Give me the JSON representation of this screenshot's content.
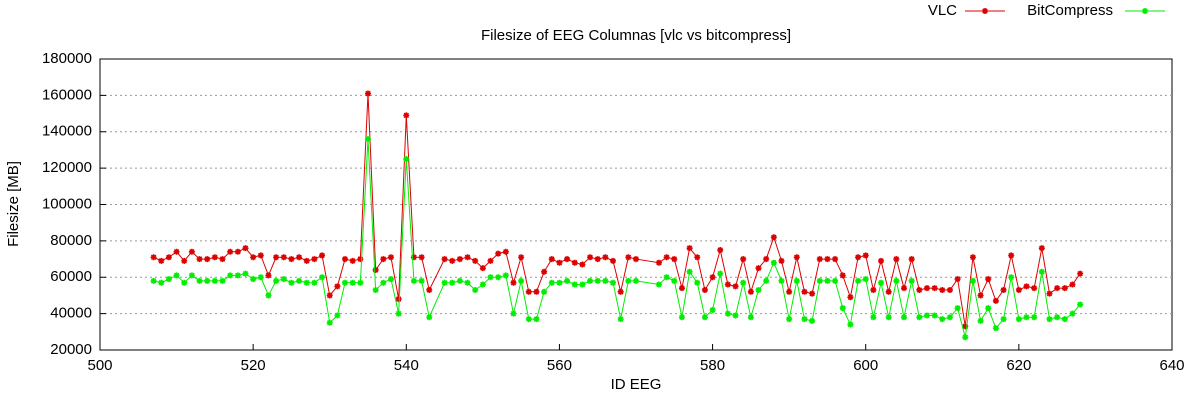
{
  "chart_data": {
    "type": "line",
    "title": "Filesize of EEG Columnas [vlc vs bitcompress]",
    "x_label": "ID EEG",
    "y_label": "Filesize [MB]",
    "x": [
      507,
      508,
      509,
      510,
      511,
      512,
      513,
      514,
      515,
      516,
      517,
      518,
      519,
      520,
      521,
      522,
      523,
      524,
      525,
      526,
      527,
      528,
      529,
      530,
      531,
      532,
      533,
      534,
      535,
      536,
      537,
      538,
      539,
      540,
      541,
      542,
      543,
      545,
      546,
      547,
      548,
      549,
      550,
      551,
      552,
      553,
      554,
      555,
      556,
      557,
      558,
      559,
      560,
      561,
      562,
      563,
      564,
      565,
      566,
      567,
      568,
      569,
      570,
      573,
      574,
      575,
      576,
      577,
      578,
      579,
      580,
      581,
      582,
      583,
      584,
      585,
      586,
      587,
      588,
      589,
      590,
      591,
      592,
      593,
      594,
      595,
      596,
      597,
      598,
      599,
      600,
      601,
      602,
      603,
      604,
      605,
      606,
      607,
      608,
      609,
      610,
      611,
      612,
      613,
      614,
      615,
      616,
      617,
      618,
      619,
      620,
      621,
      622,
      623,
      624,
      625,
      626,
      627,
      628
    ],
    "series": [
      {
        "name": "VLC",
        "color": "#dd0000",
        "values": [
          71000,
          69000,
          71000,
          74000,
          69000,
          74000,
          70000,
          70000,
          71000,
          70000,
          74000,
          74000,
          76000,
          71000,
          72000,
          61000,
          71000,
          71000,
          70000,
          71000,
          69000,
          70000,
          72000,
          50000,
          55000,
          70000,
          69000,
          70000,
          161000,
          64000,
          70000,
          71000,
          48000,
          149000,
          71000,
          71000,
          53000,
          70000,
          69000,
          70000,
          71000,
          69000,
          65000,
          69000,
          73000,
          74000,
          57000,
          71000,
          52000,
          52000,
          63000,
          70000,
          68000,
          70000,
          68000,
          67000,
          71000,
          70000,
          71000,
          69000,
          52000,
          71000,
          70000,
          68000,
          71000,
          70000,
          54000,
          76000,
          71000,
          53000,
          60000,
          75000,
          56000,
          55000,
          70000,
          52000,
          65000,
          70000,
          82000,
          69000,
          52000,
          71000,
          52000,
          51000,
          70000,
          70000,
          70000,
          61000,
          49000,
          71000,
          72000,
          53000,
          69000,
          52000,
          70000,
          54000,
          70000,
          53000,
          54000,
          54000,
          53000,
          53000,
          59000,
          33000,
          71000,
          50000,
          59000,
          47000,
          53000,
          72000,
          53000,
          55000,
          54000,
          76000,
          51000,
          54000,
          54000,
          56000,
          62000
        ]
      },
      {
        "name": "BitCompress",
        "color": "#00ee00",
        "values": [
          58000,
          57000,
          59000,
          61000,
          57000,
          61000,
          58000,
          58000,
          58000,
          58000,
          61000,
          61000,
          62000,
          59000,
          60000,
          50000,
          58000,
          59000,
          57000,
          58000,
          57000,
          57000,
          60000,
          35000,
          39000,
          57000,
          57000,
          57000,
          136000,
          53000,
          57000,
          59000,
          40000,
          125000,
          58000,
          58000,
          38000,
          57000,
          57000,
          58000,
          57000,
          53000,
          56000,
          60000,
          60000,
          61000,
          40000,
          58000,
          37000,
          37000,
          52000,
          57000,
          57000,
          58000,
          56000,
          56000,
          58000,
          58000,
          58000,
          57000,
          37000,
          58000,
          58000,
          56000,
          60000,
          58000,
          38000,
          63000,
          57000,
          38000,
          42000,
          62000,
          40000,
          39000,
          57000,
          38000,
          53000,
          58000,
          68000,
          58000,
          37000,
          58000,
          37000,
          36000,
          58000,
          58000,
          58000,
          43000,
          34000,
          58000,
          59000,
          38000,
          57000,
          38000,
          58000,
          38000,
          58000,
          38000,
          39000,
          39000,
          37000,
          38000,
          43000,
          27000,
          58000,
          36000,
          43000,
          32000,
          37000,
          60000,
          37000,
          38000,
          38000,
          63000,
          37000,
          38000,
          37000,
          40000,
          45000
        ]
      }
    ],
    "xlim": [
      500,
      640
    ],
    "xticks": [
      500,
      520,
      540,
      560,
      580,
      600,
      620,
      640
    ],
    "ylim": [
      20000,
      180000
    ],
    "yticks": [
      20000,
      40000,
      60000,
      80000,
      100000,
      120000,
      140000,
      160000,
      180000
    ],
    "grid": "y",
    "legend": "top-right"
  }
}
